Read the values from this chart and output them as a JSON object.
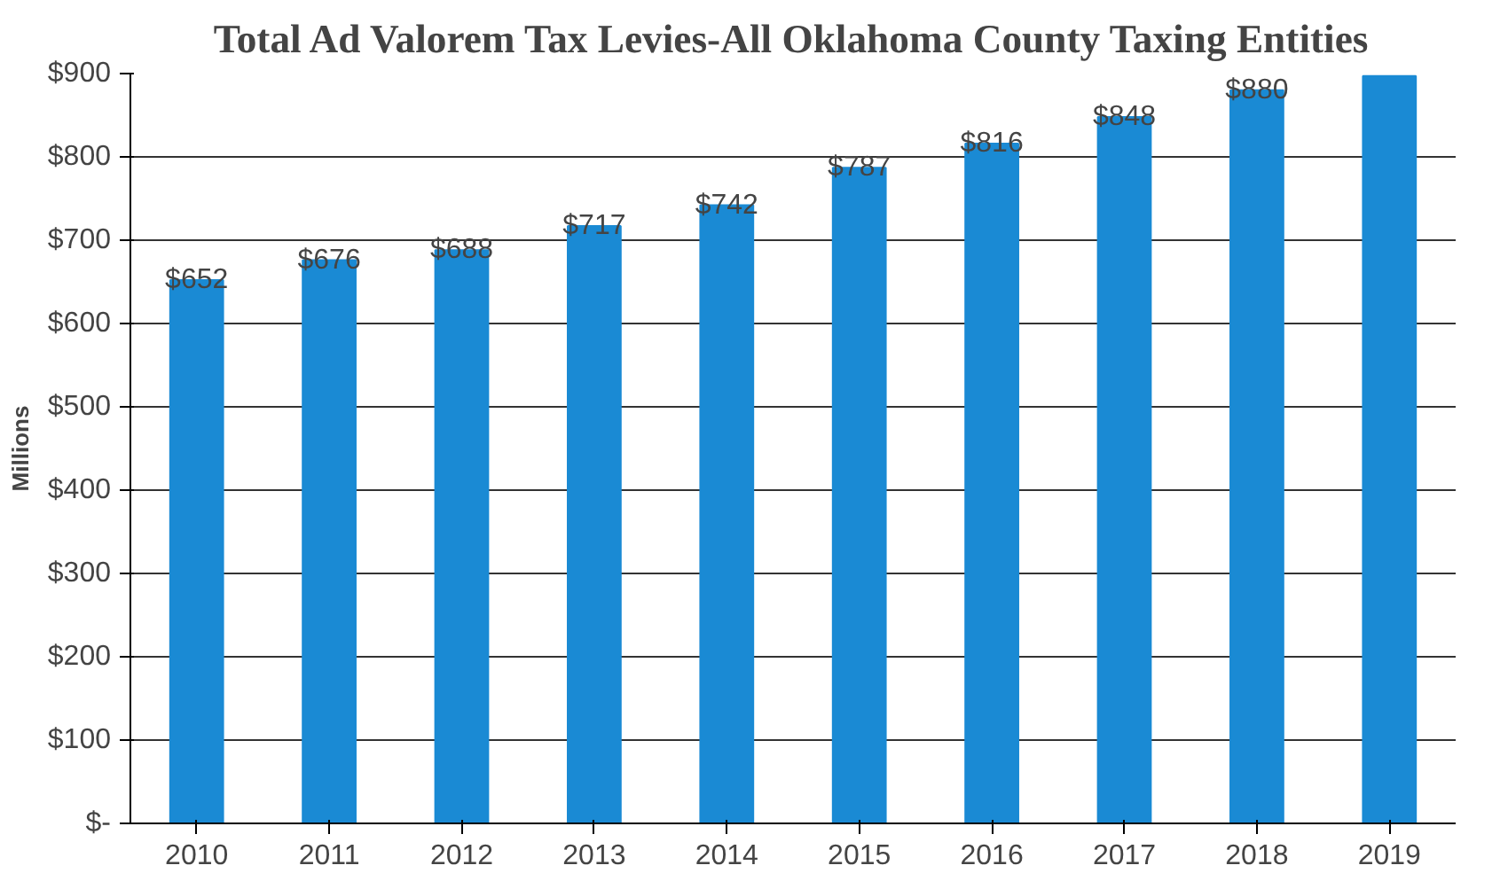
{
  "chart_data": {
    "type": "bar",
    "title": "Total Ad Valorem Tax Levies-All Oklahoma County Taxing Entities",
    "ylabel": "Millions",
    "categories": [
      "2010",
      "2011",
      "2012",
      "2013",
      "2014",
      "2015",
      "2016",
      "2017",
      "2018",
      "2019"
    ],
    "values": [
      652,
      676,
      688,
      717,
      742,
      787,
      816,
      848,
      880,
      897
    ],
    "value_labels": [
      "$652",
      "$676",
      "$688",
      "$717",
      "$742",
      "$787",
      "$816",
      "$848",
      "$880",
      null
    ],
    "color": "#1a8ad4",
    "ylim": [
      0,
      900
    ],
    "yticks": [
      {
        "value": 0,
        "label": "$-"
      },
      {
        "value": 100,
        "label": "$100"
      },
      {
        "value": 200,
        "label": "$200"
      },
      {
        "value": 300,
        "label": "$300"
      },
      {
        "value": 400,
        "label": "$400"
      },
      {
        "value": 500,
        "label": "$500"
      },
      {
        "value": 600,
        "label": "$600"
      },
      {
        "value": 700,
        "label": "$700"
      },
      {
        "value": 800,
        "label": "$800"
      },
      {
        "value": 900,
        "label": "$900"
      }
    ],
    "grid": "y"
  }
}
